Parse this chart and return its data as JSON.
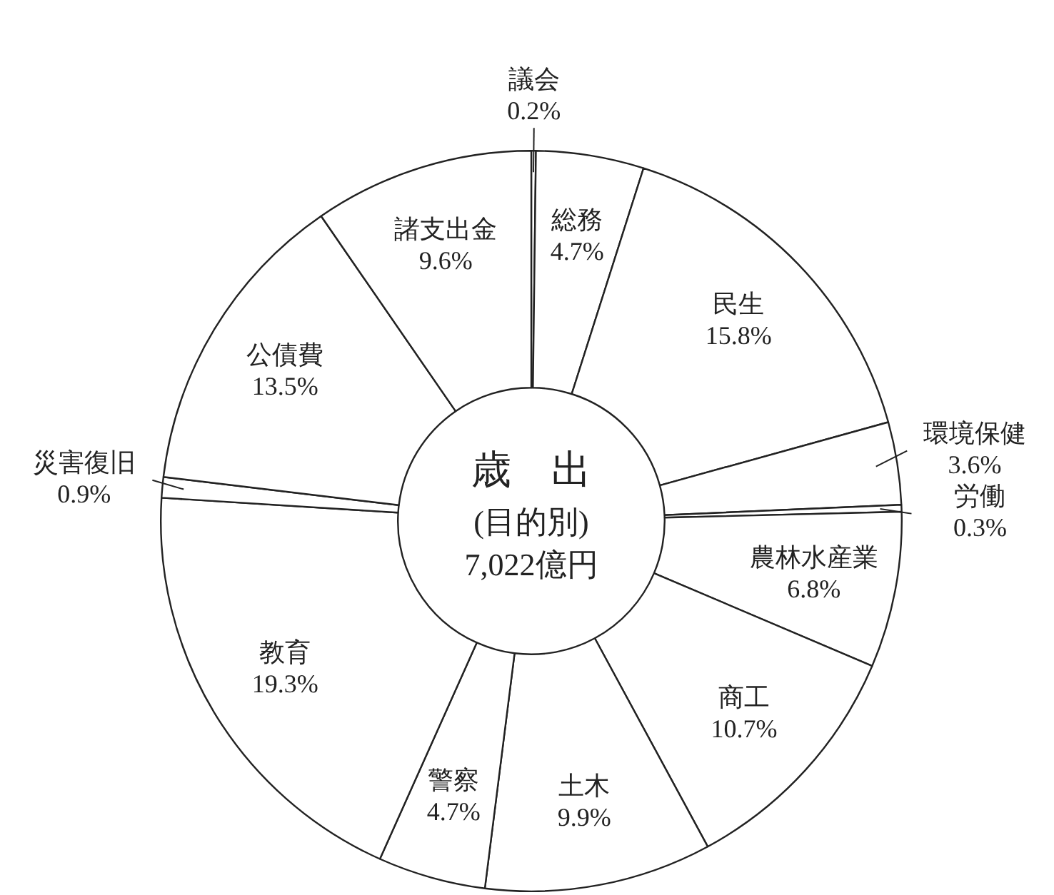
{
  "chart_data": {
    "type": "donut",
    "title": "歳　出",
    "subtitle": "(目的別)",
    "annotations": [
      "7,022億円"
    ],
    "categories": [
      "議会",
      "総務",
      "民生",
      "環境保健",
      "労働",
      "農林水産業",
      "商工",
      "土木",
      "警察",
      "教育",
      "災害復旧",
      "公債費",
      "諸支出金"
    ],
    "values": [
      0.2,
      4.7,
      15.8,
      3.6,
      0.3,
      6.8,
      10.7,
      9.9,
      4.7,
      19.3,
      0.9,
      13.5,
      9.6
    ],
    "value_labels": [
      "0.2%",
      "4.7%",
      "15.8%",
      "3.6%",
      "0.3%",
      "6.8%",
      "10.7%",
      "9.9%",
      "4.7%",
      "19.3%",
      "0.9%",
      "13.5%",
      "9.6%"
    ],
    "colors": [
      "#ffffff",
      "#ffffff",
      "#ffffff",
      "#ffffff",
      "#ffffff",
      "#ffffff",
      "#ffffff",
      "#ffffff",
      "#ffffff",
      "#ffffff",
      "#ffffff",
      "#ffffff",
      "#ffffff"
    ]
  }
}
